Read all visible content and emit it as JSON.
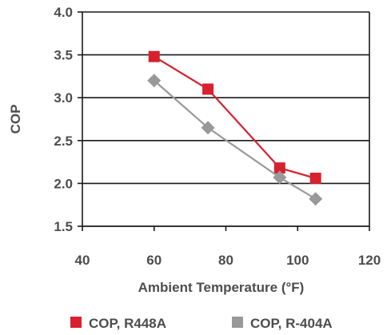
{
  "chart_data": {
    "type": "line",
    "xlabel": "Ambient Temperature (°F)",
    "ylabel": "COP",
    "xlim": [
      40,
      120
    ],
    "ylim": [
      1.5,
      4.0
    ],
    "xticks": [
      40,
      60,
      80,
      100,
      120
    ],
    "yticks": [
      1.5,
      2.0,
      2.5,
      3.0,
      3.5,
      4.0
    ],
    "xtick_labels": [
      "40",
      "60",
      "80",
      "100",
      "120"
    ],
    "ytick_labels": [
      "1.5",
      "2.0",
      "2.5",
      "3.0",
      "3.5",
      "4.0"
    ],
    "grid": "horizontal",
    "legend_position": "bottom",
    "series": [
      {
        "name": "COP, R448A",
        "color": "#d7212e",
        "marker": "square",
        "x": [
          60,
          75,
          95,
          105
        ],
        "y": [
          3.48,
          3.1,
          2.18,
          2.06
        ]
      },
      {
        "name": "COP, R-404A",
        "color": "#999999",
        "marker": "diamond",
        "x": [
          60,
          75,
          95,
          105
        ],
        "y": [
          3.2,
          2.65,
          2.07,
          1.82
        ]
      }
    ]
  }
}
